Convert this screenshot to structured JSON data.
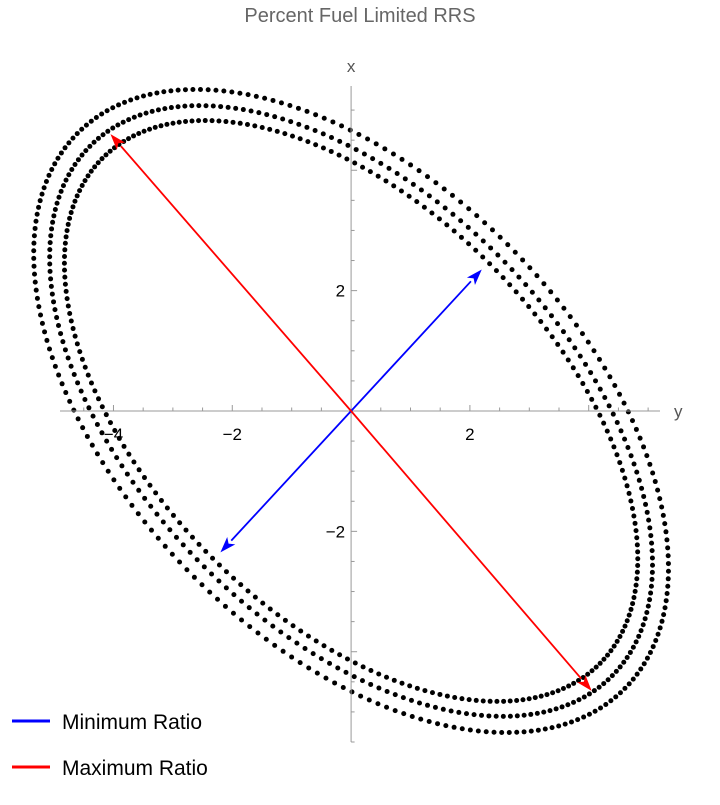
{
  "chart_data": {
    "type": "scatter",
    "title": "Percent Fuel Limited RRS",
    "xlabel": "y",
    "ylabel": "x",
    "xlim": [
      -4.9,
      5.2
    ],
    "ylim": [
      -5.5,
      5.4
    ],
    "x_ticks": [
      -4,
      -2,
      2
    ],
    "y_ticks": [
      2,
      -2
    ],
    "x_tick_labels": [
      "−4",
      "−2",
      "2"
    ],
    "y_tick_labels": [
      "2",
      "−2"
    ],
    "grid": false,
    "point_color": "#000000",
    "ellipses": [
      {
        "semi_major": 5.93,
        "semi_minor": 3.38,
        "major_axis_direction": [
          -0.707,
          0.707
        ],
        "points": 230
      },
      {
        "semi_major": 6.22,
        "semi_minor": 3.58,
        "major_axis_direction": [
          -0.707,
          0.707
        ],
        "points": 230
      },
      {
        "semi_major": 6.52,
        "semi_minor": 3.82,
        "major_axis_direction": [
          -0.707,
          0.707
        ],
        "points": 230
      }
    ],
    "series": [
      {
        "name": "Minimum Ratio",
        "color": "#0000ff",
        "type": "arrows",
        "from": [
          0,
          0
        ],
        "to": [
          [
            2.2,
            2.35
          ],
          [
            -2.2,
            -2.35
          ]
        ]
      },
      {
        "name": "Maximum Ratio",
        "color": "#ff0000",
        "type": "arrows",
        "from": [
          0,
          0
        ],
        "to": [
          [
            -4.05,
            4.6
          ],
          [
            4.05,
            -4.65
          ]
        ]
      }
    ],
    "legend": {
      "placement": "bottom-left",
      "entries": [
        {
          "label": "Minimum Ratio",
          "color": "#0000ff"
        },
        {
          "label": "Maximum Ratio",
          "color": "#ff0000"
        }
      ]
    }
  }
}
